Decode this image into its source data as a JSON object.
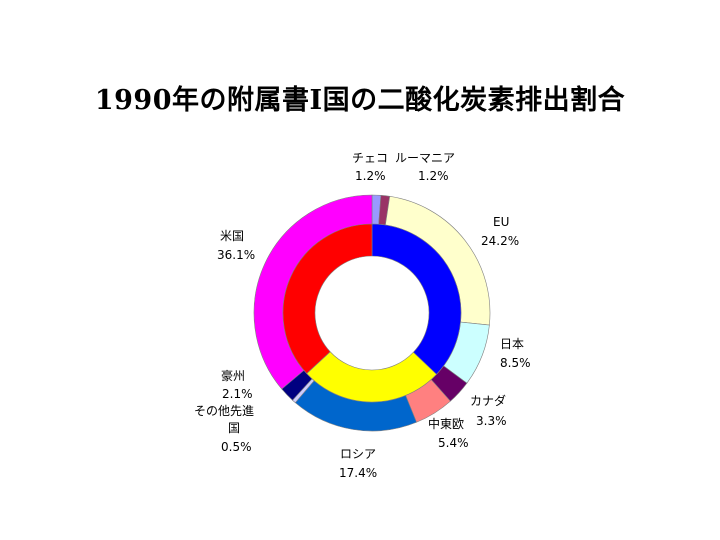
{
  "title": "1990年の附属書I国の二酸化炭素排出割合",
  "chart_data": {
    "type": "pie",
    "subtype": "donut",
    "inner_ring": "grouped",
    "title": "1990年の附属書I国の二酸化炭素排出割合",
    "series": [
      {
        "label": "チェコ",
        "value": 1.2,
        "value_label": "1.2%",
        "color": "#9999ff"
      },
      {
        "label": "ルーマニア",
        "value": 1.2,
        "value_label": "1.2%",
        "color": "#993366"
      },
      {
        "label": "EU",
        "value": 24.2,
        "value_label": "24.2%",
        "color": "#ffffcc"
      },
      {
        "label": "日本",
        "value": 8.5,
        "value_label": "8.5%",
        "color": "#ccffff"
      },
      {
        "label": "カナダ",
        "value": 3.3,
        "value_label": "3.3%",
        "color": "#660066"
      },
      {
        "label": "中東欧",
        "value": 5.4,
        "value_label": "5.4%",
        "color": "#ff8080"
      },
      {
        "label": "ロシア",
        "value": 17.4,
        "value_label": "17.4%",
        "color": "#0066cc"
      },
      {
        "label": "その他先進国",
        "value": 0.5,
        "value_label": "0.5%",
        "color": "#ccccff"
      },
      {
        "label": "豪州",
        "value": 2.1,
        "value_label": "2.1%",
        "color": "#000080"
      },
      {
        "label": "米国",
        "value": 36.1,
        "value_label": "36.1%",
        "color": "#ff00ff"
      }
    ],
    "inner_groups": [
      {
        "value": 37.1,
        "color": "#0000ff"
      },
      {
        "value": 26.0,
        "color": "#ffff00"
      },
      {
        "value": 36.9,
        "color": "#ff0000"
      }
    ]
  }
}
